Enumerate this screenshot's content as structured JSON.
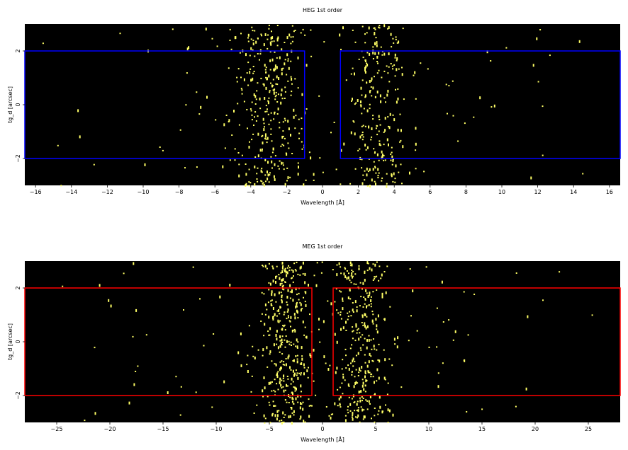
{
  "chart_data": [
    {
      "type": "scatter",
      "title": "HEG 1st order",
      "xlabel": "Wavelength [Å]",
      "ylabel": "tg_d [arcsec]",
      "xlim": [
        -16.6,
        16.6
      ],
      "ylim": [
        -3.0,
        3.0
      ],
      "xticks": [
        -16,
        -14,
        -12,
        -10,
        -8,
        -6,
        -4,
        -2,
        0,
        2,
        4,
        6,
        8,
        10,
        12,
        14,
        16
      ],
      "xtick_labels": [
        "−16",
        "−14",
        "−12",
        "−10",
        "−8",
        "−6",
        "−4",
        "−2",
        "0",
        "2",
        "4",
        "6",
        "8",
        "10",
        "12",
        "14",
        "16"
      ],
      "yticks": [
        -2,
        0,
        2
      ],
      "ytick_labels": [
        "−2",
        "0",
        "2"
      ],
      "background_color": "#000000",
      "event_color": "#ffff66",
      "regions": [
        {
          "x0": -16.6,
          "x1": -1.0,
          "y0": -2.0,
          "y1": 2.0,
          "color": "#0000ff"
        },
        {
          "x0": 1.0,
          "x1": 16.6,
          "y0": -2.0,
          "y1": 2.0,
          "color": "#0000ff"
        }
      ],
      "event_density": [
        {
          "x_center": -3.0,
          "x_sigma": 1.1,
          "count": 330
        },
        {
          "x_center": 3.0,
          "x_sigma": 0.9,
          "count": 250
        },
        {
          "x_center": -8.0,
          "x_sigma": 5.0,
          "count": 45
        },
        {
          "x_center": 8.5,
          "x_sigma": 4.5,
          "count": 40
        }
      ]
    },
    {
      "type": "scatter",
      "title": "MEG 1st order",
      "xlabel": "Wavelength [Å]",
      "ylabel": "tg_d [arcsec]",
      "xlim": [
        -28.0,
        28.0
      ],
      "ylim": [
        -3.0,
        3.0
      ],
      "xticks": [
        -25,
        -20,
        -15,
        -10,
        -5,
        0,
        5,
        10,
        15,
        20,
        25
      ],
      "xtick_labels": [
        "−25",
        "−20",
        "−15",
        "−10",
        "−5",
        "0",
        "5",
        "10",
        "15",
        "20",
        "25"
      ],
      "yticks": [
        -2,
        0,
        2
      ],
      "ytick_labels": [
        "−2",
        "0",
        "2"
      ],
      "background_color": "#000000",
      "event_color": "#ffff66",
      "regions": [
        {
          "x0": -28.0,
          "x1": -1.0,
          "y0": -2.0,
          "y1": 2.0,
          "color": "#ff0000"
        },
        {
          "x0": 1.0,
          "x1": 28.0,
          "y0": -2.0,
          "y1": 2.0,
          "color": "#ff0000"
        }
      ],
      "event_density": [
        {
          "x_center": -3.5,
          "x_sigma": 1.3,
          "count": 380
        },
        {
          "x_center": 3.5,
          "x_sigma": 1.4,
          "count": 330
        },
        {
          "x_center": -12.0,
          "x_sigma": 8.0,
          "count": 45
        },
        {
          "x_center": 12.0,
          "x_sigma": 8.0,
          "count": 45
        }
      ]
    }
  ]
}
